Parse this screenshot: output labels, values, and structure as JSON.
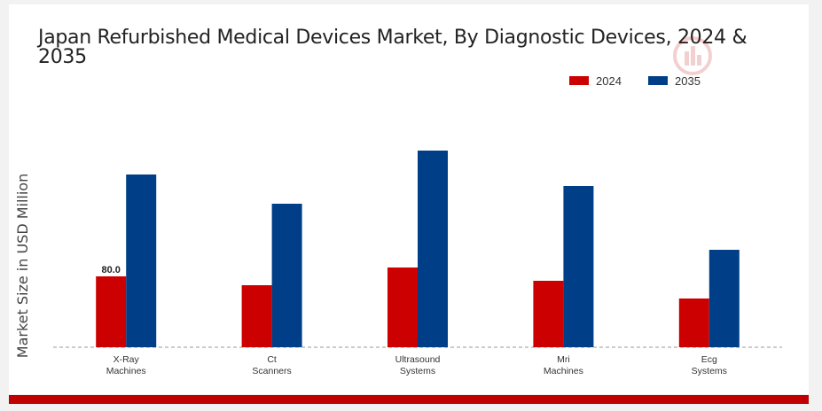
{
  "chart_data": {
    "type": "bar",
    "title": "Japan Refurbished Medical Devices Market, By Diagnostic Devices, 2024 & 2035",
    "xlabel": "",
    "ylabel": "Market Size in USD Million",
    "categories": [
      "X-Ray\nMachines",
      "Ct\nScanners",
      "Ultrasound\nSystems",
      "Mri\nMachines",
      "Ecg\nSystems"
    ],
    "series": [
      {
        "name": "2024",
        "color": "#cc0000",
        "values": [
          80.0,
          70.0,
          90.0,
          75.0,
          55.0
        ]
      },
      {
        "name": "2035",
        "color": "#003f88",
        "values": [
          195.0,
          162.0,
          222.0,
          182.0,
          110.0
        ]
      }
    ],
    "data_labels": [
      {
        "series": 0,
        "index": 0,
        "text": "80.0"
      }
    ],
    "ylim": [
      0,
      250
    ],
    "grid": false,
    "legend": "top-right"
  }
}
